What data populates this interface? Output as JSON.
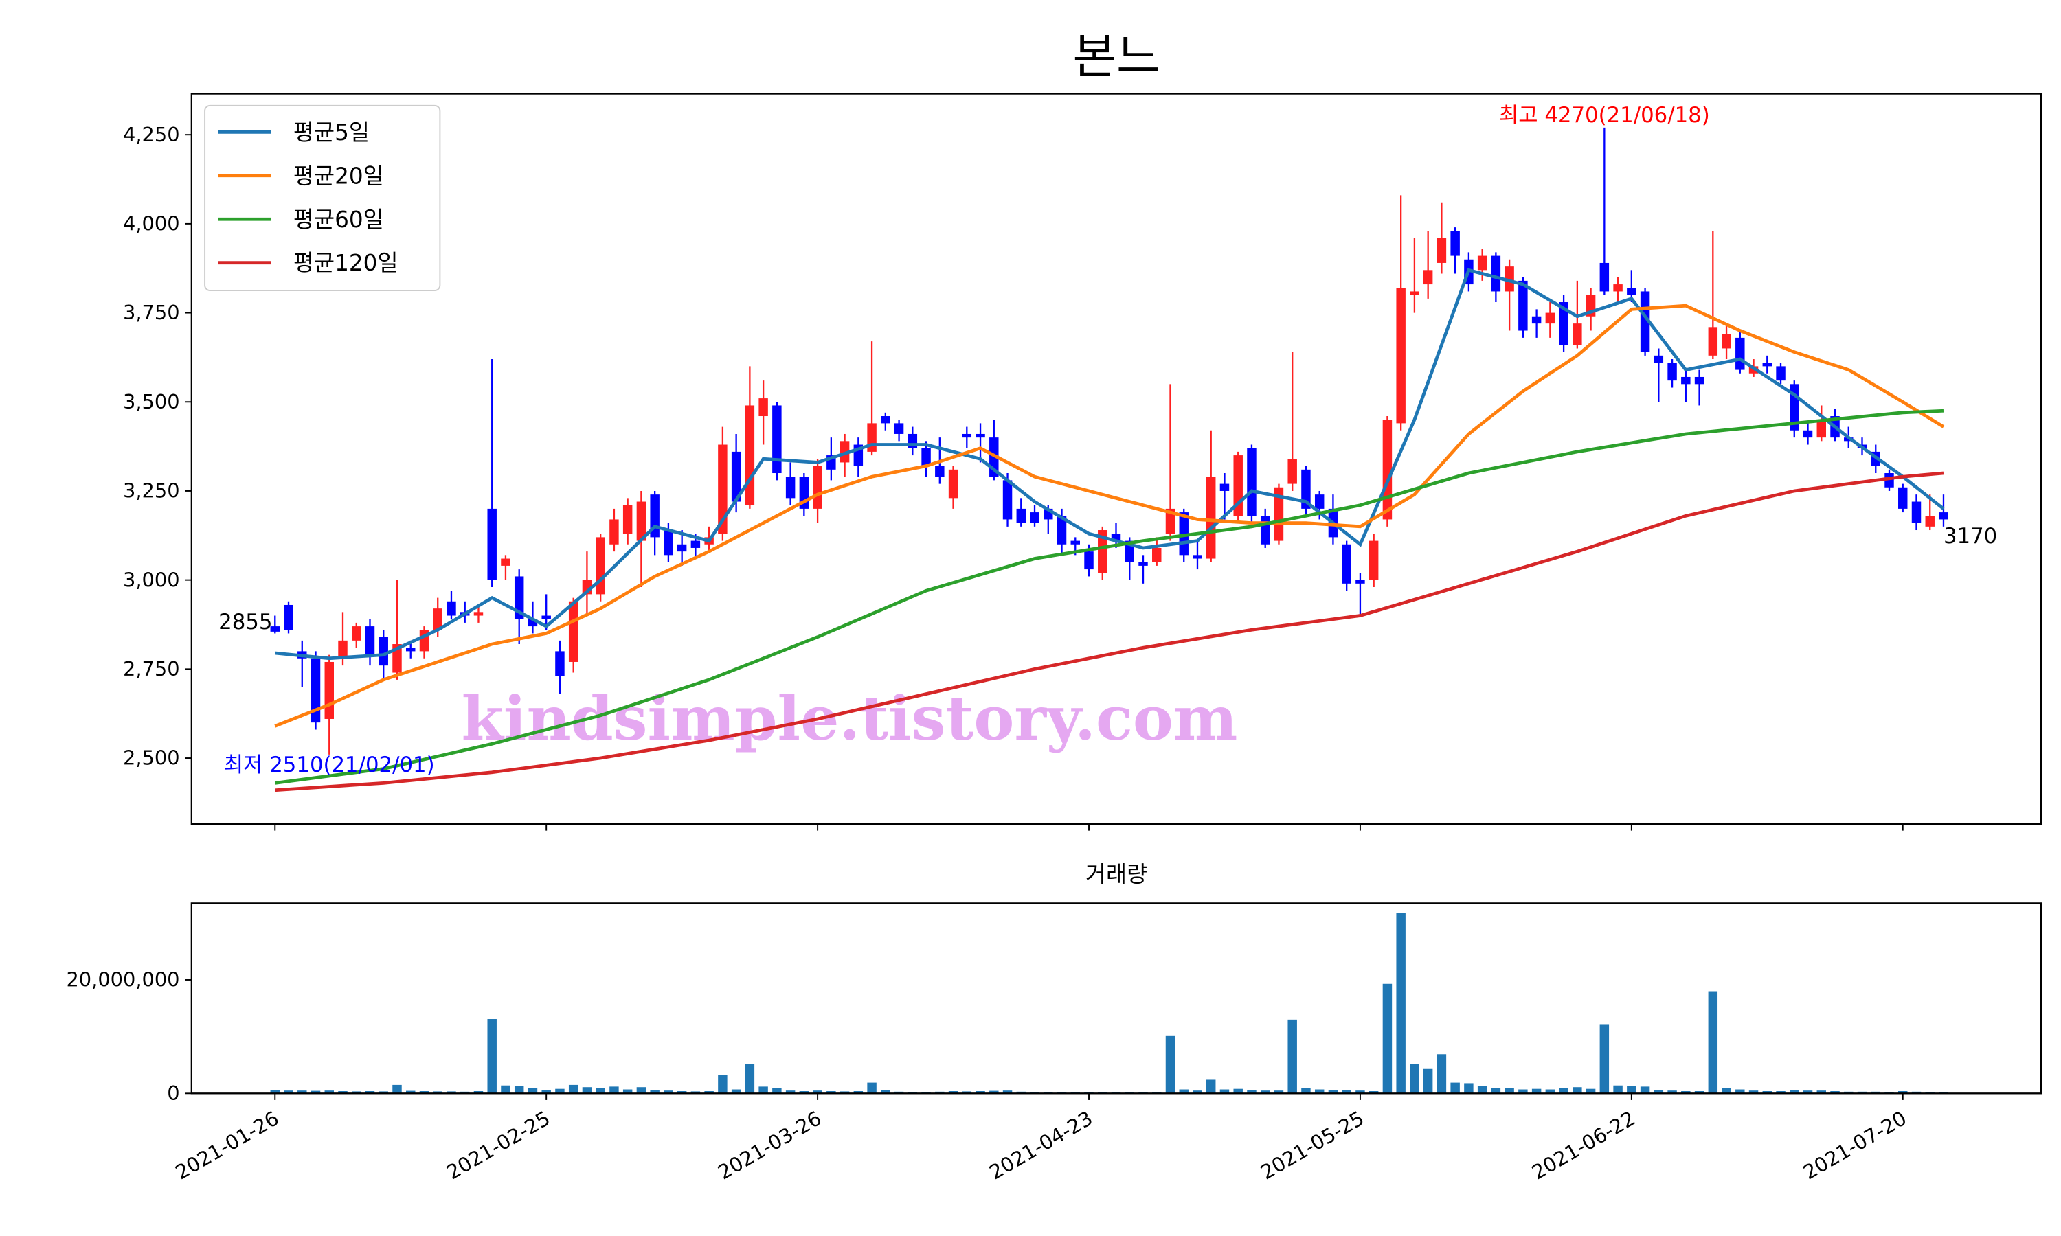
{
  "chart_data": [
    {
      "type": "candlestick",
      "title": "본느",
      "xlim": [
        -6.15,
        130.2
      ],
      "ylim": [
        2315,
        4365
      ],
      "yticks": [
        {
          "value": 2500,
          "label": "2,500"
        },
        {
          "value": 2750,
          "label": "2,750"
        },
        {
          "value": 3000,
          "label": "3,000"
        },
        {
          "value": 3250,
          "label": "3,250"
        },
        {
          "value": 3500,
          "label": "3,500"
        },
        {
          "value": 3750,
          "label": "3,750"
        },
        {
          "value": 4000,
          "label": "4,000"
        },
        {
          "value": 4250,
          "label": "4,250"
        }
      ],
      "up_color": "#ff2020",
      "down_color": "#0000ff",
      "open": [
        2870,
        2930,
        2800,
        2780,
        2610,
        2780,
        2830,
        2870,
        2840,
        2740,
        2810,
        2800,
        2860,
        2940,
        2910,
        2900,
        3200,
        3040,
        3010,
        2890,
        2900,
        2800,
        2770,
        2960,
        2960,
        3100,
        3130,
        3110,
        3240,
        3140,
        3100,
        3110,
        3100,
        3130,
        3360,
        3210,
        3460,
        3490,
        3290,
        3290,
        3200,
        3350,
        3330,
        3380,
        3360,
        3460,
        3440,
        3410,
        3370,
        3320,
        3230,
        3410,
        3410,
        3400,
        3280,
        3200,
        3190,
        3200,
        3180,
        3110,
        3080,
        3020,
        3130,
        3110,
        3050,
        3050,
        3130,
        3190,
        3070,
        3060,
        3270,
        3180,
        3370,
        3180,
        3110,
        3270,
        3310,
        3240,
        3200,
        3100,
        3000,
        3000,
        3170,
        3440,
        3800,
        3830,
        3890,
        3980,
        3900,
        3870,
        3910,
        3810,
        3840,
        3740,
        3720,
        3780,
        3660,
        3740,
        3890,
        3810,
        3820,
        3810,
        3630,
        3610,
        3570,
        3570,
        3630,
        3650,
        3680,
        3580,
        3610,
        3600,
        3550,
        3420,
        3400,
        3460,
        3400,
        3380,
        3360,
        3300,
        3260,
        3220,
        3150,
        3190
      ],
      "high": [
        2900,
        2940,
        2830,
        2800,
        2790,
        2910,
        2880,
        2890,
        2860,
        3000,
        2830,
        2870,
        2950,
        2970,
        2940,
        2930,
        3620,
        3070,
        3030,
        2940,
        2960,
        2830,
        2950,
        3080,
        3130,
        3200,
        3230,
        3250,
        3250,
        3160,
        3140,
        3130,
        3150,
        3430,
        3410,
        3600,
        3560,
        3500,
        3330,
        3300,
        3340,
        3400,
        3410,
        3400,
        3670,
        3470,
        3450,
        3430,
        3390,
        3400,
        3320,
        3430,
        3440,
        3450,
        3300,
        3230,
        3210,
        3210,
        3200,
        3120,
        3100,
        3150,
        3160,
        3120,
        3070,
        3120,
        3550,
        3200,
        3110,
        3420,
        3300,
        3360,
        3380,
        3200,
        3270,
        3640,
        3320,
        3250,
        3240,
        3110,
        3020,
        3130,
        3460,
        4080,
        3960,
        3980,
        4060,
        3990,
        3920,
        3930,
        3920,
        3900,
        3850,
        3760,
        3780,
        3800,
        3840,
        3820,
        4270,
        3850,
        3870,
        3820,
        3650,
        3620,
        3590,
        3590,
        3980,
        3720,
        3700,
        3620,
        3630,
        3610,
        3560,
        3440,
        3490,
        3480,
        3430,
        3400,
        3380,
        3310,
        3270,
        3240,
        3240,
        3240
      ],
      "low": [
        2850,
        2850,
        2700,
        2580,
        2510,
        2760,
        2810,
        2760,
        2720,
        2720,
        2780,
        2780,
        2840,
        2890,
        2880,
        2880,
        2980,
        3000,
        2820,
        2850,
        2860,
        2680,
        2740,
        2900,
        2940,
        3080,
        3100,
        2980,
        3070,
        3050,
        3040,
        3060,
        3080,
        3110,
        3190,
        3200,
        3380,
        3280,
        3210,
        3180,
        3160,
        3280,
        3290,
        3290,
        3350,
        3420,
        3390,
        3350,
        3290,
        3270,
        3200,
        3370,
        3330,
        3280,
        3150,
        3150,
        3150,
        3130,
        3070,
        3070,
        3010,
        3000,
        3090,
        3000,
        2990,
        3040,
        3110,
        3050,
        3030,
        3050,
        3170,
        3160,
        3160,
        3090,
        3100,
        3250,
        3180,
        3170,
        3100,
        2970,
        2900,
        2980,
        3150,
        3420,
        3750,
        3790,
        3860,
        3860,
        3810,
        3840,
        3780,
        3700,
        3680,
        3680,
        3680,
        3640,
        3650,
        3700,
        3800,
        3780,
        3780,
        3630,
        3500,
        3540,
        3500,
        3490,
        3620,
        3620,
        3580,
        3570,
        3580,
        3550,
        3400,
        3380,
        3390,
        3390,
        3370,
        3350,
        3300,
        3250,
        3190,
        3140,
        3140,
        3150
      ],
      "close": [
        2855,
        2860,
        2780,
        2600,
        2770,
        2830,
        2870,
        2790,
        2760,
        2820,
        2800,
        2860,
        2920,
        2900,
        2900,
        2910,
        3000,
        3060,
        2890,
        2870,
        2890,
        2730,
        2940,
        3000,
        3120,
        3170,
        3210,
        3220,
        3120,
        3070,
        3080,
        3090,
        3120,
        3380,
        3220,
        3490,
        3510,
        3300,
        3230,
        3200,
        3320,
        3310,
        3390,
        3320,
        3440,
        3440,
        3410,
        3370,
        3320,
        3290,
        3310,
        3400,
        3400,
        3290,
        3170,
        3160,
        3160,
        3170,
        3100,
        3100,
        3030,
        3140,
        3110,
        3050,
        3040,
        3090,
        3200,
        3070,
        3060,
        3290,
        3250,
        3350,
        3180,
        3100,
        3260,
        3340,
        3200,
        3200,
        3120,
        2990,
        2990,
        3110,
        3450,
        3820,
        3810,
        3870,
        3960,
        3910,
        3830,
        3910,
        3810,
        3880,
        3700,
        3720,
        3750,
        3660,
        3720,
        3800,
        3810,
        3830,
        3800,
        3640,
        3610,
        3560,
        3550,
        3550,
        3710,
        3690,
        3590,
        3600,
        3600,
        3560,
        3420,
        3400,
        3450,
        3400,
        3390,
        3370,
        3320,
        3260,
        3200,
        3160,
        3180,
        3170
      ],
      "series": [
        {
          "name": "평균5일",
          "color": "#1f77b4",
          "x": [
            0,
            4,
            8,
            12,
            16,
            20,
            24,
            28,
            32,
            36,
            40,
            44,
            48,
            52,
            56,
            60,
            64,
            68,
            72,
            76,
            80,
            84,
            88,
            92,
            96,
            100,
            104,
            108,
            112,
            116,
            120,
            123
          ],
          "values": [
            2795,
            2780,
            2790,
            2860,
            2950,
            2870,
            3000,
            3150,
            3110,
            3340,
            3330,
            3380,
            3380,
            3340,
            3220,
            3130,
            3090,
            3110,
            3250,
            3220,
            3100,
            3450,
            3870,
            3830,
            3740,
            3790,
            3590,
            3620,
            3520,
            3400,
            3290,
            3200
          ]
        },
        {
          "name": "평균20일",
          "color": "#ff7f0e",
          "x": [
            0,
            4,
            8,
            12,
            16,
            20,
            24,
            28,
            32,
            36,
            40,
            44,
            48,
            52,
            56,
            60,
            64,
            68,
            72,
            76,
            80,
            84,
            88,
            92,
            96,
            100,
            104,
            108,
            112,
            116,
            120,
            123
          ],
          "values": [
            2590,
            2650,
            2720,
            2770,
            2820,
            2850,
            2920,
            3010,
            3080,
            3160,
            3240,
            3290,
            3320,
            3370,
            3290,
            3250,
            3210,
            3170,
            3160,
            3160,
            3150,
            3240,
            3410,
            3530,
            3630,
            3760,
            3770,
            3700,
            3640,
            3590,
            3500,
            3430
          ]
        },
        {
          "name": "평균60일",
          "color": "#2ca02c",
          "x": [
            0,
            8,
            16,
            24,
            32,
            40,
            48,
            56,
            64,
            72,
            80,
            88,
            96,
            104,
            112,
            120,
            123
          ],
          "values": [
            2430,
            2470,
            2540,
            2620,
            2720,
            2840,
            2970,
            3060,
            3110,
            3150,
            3210,
            3300,
            3360,
            3410,
            3440,
            3470,
            3475
          ]
        },
        {
          "name": "평균120일",
          "color": "#d62728",
          "x": [
            0,
            8,
            16,
            24,
            32,
            40,
            48,
            56,
            64,
            72,
            80,
            88,
            96,
            104,
            112,
            120,
            123
          ],
          "values": [
            2410,
            2430,
            2460,
            2500,
            2550,
            2610,
            2680,
            2750,
            2810,
            2860,
            2900,
            2990,
            3080,
            3180,
            3250,
            3290,
            3300
          ]
        }
      ],
      "legend": "upper left",
      "annotations": [
        {
          "text": "최고 4270(21/06/18)",
          "color": "#ff0000"
        },
        {
          "text": "최저 2510(21/02/01)",
          "color": "#0000ff"
        }
      ],
      "watermark": "kindsimple.tistory.com"
    },
    {
      "type": "bar",
      "title": "거래량",
      "color": "#1f77b4",
      "xlim": [
        -6.15,
        130.2
      ],
      "ylim": [
        0,
        33500000
      ],
      "yticks": [
        0,
        {
          "value": 20000000,
          "label": "20,000,000"
        }
      ],
      "categories": [
        "2021-01-26",
        null,
        null,
        null,
        null,
        null,
        null,
        null,
        null,
        null,
        null,
        null,
        null,
        null,
        null,
        null,
        null,
        null,
        null,
        null,
        "2021-02-25",
        null,
        null,
        null,
        null,
        null,
        null,
        null,
        null,
        null,
        null,
        null,
        null,
        null,
        null,
        null,
        null,
        null,
        null,
        null,
        "2021-03-26",
        null,
        null,
        null,
        null,
        null,
        null,
        null,
        null,
        null,
        null,
        null,
        null,
        null,
        null,
        null,
        null,
        null,
        null,
        null,
        "2021-04-23",
        null,
        null,
        null,
        null,
        null,
        null,
        null,
        null,
        null,
        null,
        null,
        null,
        null,
        null,
        null,
        null,
        null,
        null,
        null,
        "2021-05-25",
        null,
        null,
        null,
        null,
        null,
        null,
        null,
        null,
        null,
        null,
        null,
        null,
        null,
        null,
        null,
        null,
        null,
        null,
        null,
        "2021-06-22",
        null,
        null,
        null,
        null,
        null,
        null,
        null,
        null,
        null,
        null,
        null,
        null,
        null,
        null,
        null,
        null,
        null,
        null,
        null,
        "2021-07-20",
        null,
        null,
        null
      ],
      "values": [
        600000,
        500000,
        500000,
        450000,
        500000,
        400000,
        350000,
        400000,
        350000,
        1500000,
        450000,
        400000,
        350000,
        350000,
        300000,
        400000,
        13100000,
        1400000,
        1300000,
        900000,
        600000,
        800000,
        1500000,
        1100000,
        1000000,
        1200000,
        700000,
        1100000,
        600000,
        500000,
        400000,
        350000,
        400000,
        3300000,
        700000,
        5200000,
        1200000,
        1000000,
        500000,
        400000,
        500000,
        400000,
        350000,
        400000,
        1900000,
        600000,
        300000,
        250000,
        250000,
        300000,
        400000,
        350000,
        400000,
        450000,
        500000,
        300000,
        250000,
        200000,
        200000,
        200000,
        200000,
        250000,
        200000,
        200000,
        200000,
        250000,
        10100000,
        700000,
        500000,
        2400000,
        700000,
        800000,
        600000,
        500000,
        500000,
        13000000,
        900000,
        700000,
        600000,
        600000,
        500000,
        400000,
        19300000,
        31800000,
        5200000,
        4300000,
        6900000,
        1900000,
        1800000,
        1300000,
        1000000,
        900000,
        700000,
        800000,
        700000,
        900000,
        1100000,
        800000,
        12200000,
        1400000,
        1300000,
        1200000,
        600000,
        500000,
        400000,
        400000,
        18000000,
        1000000,
        700000,
        500000,
        400000,
        400000,
        600000,
        500000,
        500000,
        400000,
        300000,
        300000,
        300000,
        250000,
        400000,
        300000,
        250000,
        200000
      ]
    }
  ]
}
